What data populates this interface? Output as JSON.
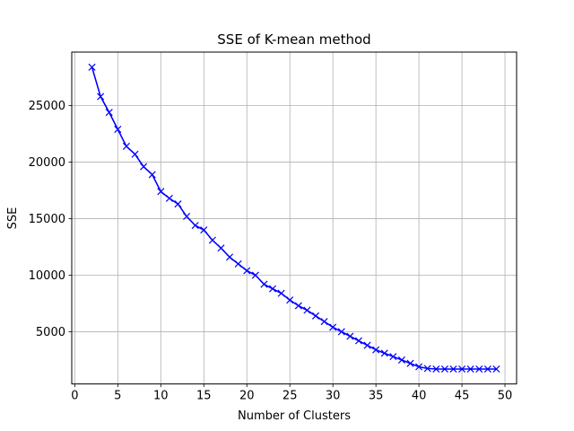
{
  "chart_data": {
    "type": "line",
    "title": "SSE of K-mean method",
    "xlabel": "Number of Clusters",
    "ylabel": "SSE",
    "xlim": [
      -0.35,
      51.35
    ],
    "ylim": [
      382,
      29736
    ],
    "grid": true,
    "marker": "x",
    "x_ticks": [
      0,
      5,
      10,
      15,
      20,
      25,
      30,
      35,
      40,
      45,
      50
    ],
    "y_ticks": [
      5000,
      10000,
      15000,
      20000,
      25000
    ],
    "series": [
      {
        "color": "#0000ff",
        "x": [
          2,
          3,
          4,
          5,
          6,
          7,
          8,
          9,
          10,
          11,
          12,
          13,
          14,
          15,
          16,
          17,
          18,
          19,
          20,
          21,
          22,
          23,
          24,
          25,
          26,
          27,
          28,
          29,
          30,
          31,
          32,
          33,
          34,
          35,
          36,
          37,
          38,
          39,
          40,
          41,
          42,
          43,
          44,
          45,
          46,
          47,
          48,
          49
        ],
        "y": [
          28400,
          25800,
          24400,
          22900,
          21400,
          20700,
          19600,
          18900,
          17400,
          16800,
          16300,
          15200,
          14400,
          14000,
          13100,
          12400,
          11600,
          11000,
          10400,
          10000,
          9200,
          8800,
          8400,
          7800,
          7300,
          6900,
          6400,
          5900,
          5400,
          5000,
          4600,
          4200,
          3800,
          3400,
          3100,
          2800,
          2500,
          2200,
          1900,
          1750,
          1700,
          1700,
          1700,
          1700,
          1700,
          1700,
          1700,
          1700
        ]
      }
    ]
  }
}
